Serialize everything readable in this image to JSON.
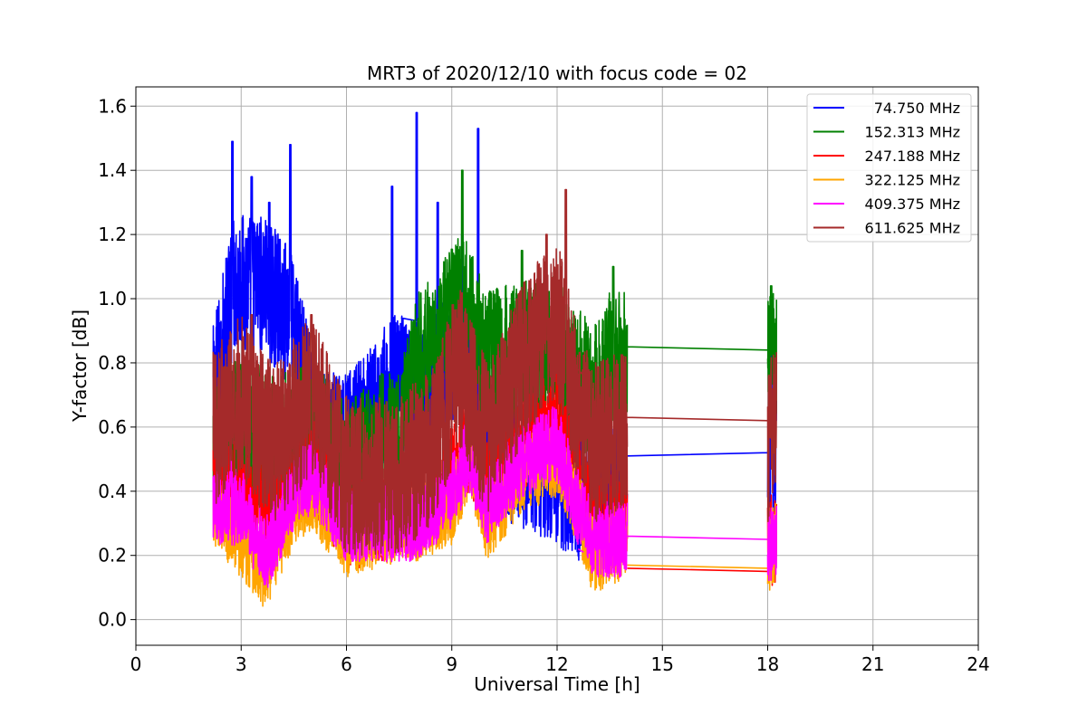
{
  "chart_data": {
    "type": "line",
    "title": "MRT3 of 2020/12/10 with focus code = 02",
    "xlabel": "Universal Time [h]",
    "ylabel": "Y-factor [dB]",
    "xlim": [
      0,
      24
    ],
    "ylim": [
      -0.08,
      1.66
    ],
    "xticks": [
      0,
      3,
      6,
      9,
      12,
      15,
      18,
      21,
      24
    ],
    "yticks": [
      0.0,
      0.2,
      0.4,
      0.6,
      0.8,
      1.0,
      1.2,
      1.4,
      1.6
    ],
    "ytick_labels": [
      "0.0",
      "0.2",
      "0.4",
      "0.6",
      "0.8",
      "1.0",
      "1.2",
      "1.4",
      "1.6"
    ],
    "grid": true,
    "legend_position": "top-right",
    "segments": [
      {
        "x0": 2.2,
        "x1": 7.55
      },
      {
        "x0": 7.55,
        "x1": 8.05
      },
      {
        "x0": 8.05,
        "x1": 12.6
      },
      {
        "x0": 12.6,
        "x1": 12.75
      },
      {
        "x0": 12.75,
        "x1": 14.0
      },
      {
        "x0": 18.0,
        "x1": 18.25
      }
    ],
    "series": [
      {
        "name": "74.750 MHz",
        "color": "#0000ff",
        "baseline": [
          [
            2.2,
            0.7
          ],
          [
            2.8,
            1.05
          ],
          [
            3.5,
            1.05
          ],
          [
            4.4,
            0.95
          ],
          [
            5.2,
            0.55
          ],
          [
            6.0,
            0.55
          ],
          [
            7.5,
            0.75
          ],
          [
            8.0,
            0.65
          ],
          [
            8.5,
            0.75
          ],
          [
            9.3,
            0.85
          ],
          [
            10.0,
            0.55
          ],
          [
            11.0,
            0.5
          ],
          [
            12.0,
            0.45
          ],
          [
            12.6,
            0.4
          ],
          [
            13.0,
            0.4
          ],
          [
            14.0,
            0.45
          ],
          [
            18.0,
            0.5
          ],
          [
            18.25,
            0.55
          ]
        ],
        "amplitude": 0.22,
        "peaks": [
          [
            2.75,
            1.49
          ],
          [
            3.3,
            1.38
          ],
          [
            3.8,
            1.3
          ],
          [
            4.4,
            1.48
          ],
          [
            7.3,
            1.35
          ],
          [
            8.0,
            1.58
          ],
          [
            8.6,
            1.3
          ],
          [
            9.3,
            1.2
          ],
          [
            9.75,
            1.53
          ],
          [
            18.1,
            0.84
          ]
        ],
        "min": 0.0,
        "gaps": [
          [
            7.55,
            8.05,
            0.94,
            0.93
          ],
          [
            12.6,
            12.75,
            0.38,
            0.37
          ],
          [
            14.0,
            18.0,
            0.51,
            0.52
          ]
        ]
      },
      {
        "name": "152.313 MHz",
        "color": "#008000",
        "baseline": [
          [
            2.2,
            0.55
          ],
          [
            3.0,
            0.6
          ],
          [
            4.0,
            0.55
          ],
          [
            5.0,
            0.6
          ],
          [
            6.0,
            0.45
          ],
          [
            7.0,
            0.55
          ],
          [
            7.5,
            0.55
          ],
          [
            8.0,
            0.8
          ],
          [
            8.5,
            0.85
          ],
          [
            9.3,
            1.0
          ],
          [
            10.0,
            0.8
          ],
          [
            11.0,
            0.85
          ],
          [
            12.0,
            0.85
          ],
          [
            12.6,
            0.75
          ],
          [
            13.0,
            0.7
          ],
          [
            13.5,
            0.8
          ],
          [
            14.0,
            0.8
          ],
          [
            18.0,
            0.8
          ],
          [
            18.25,
            0.85
          ]
        ],
        "amplitude": 0.22,
        "peaks": [
          [
            9.3,
            1.4
          ],
          [
            13.6,
            1.1
          ],
          [
            18.1,
            1.04
          ],
          [
            11.0,
            1.15
          ]
        ],
        "min": 0.01,
        "gaps": [
          [
            7.55,
            8.05,
            0.76,
            0.76
          ],
          [
            12.6,
            12.75,
            0.78,
            0.77
          ],
          [
            14.0,
            18.0,
            0.85,
            0.84
          ]
        ]
      },
      {
        "name": "247.188 MHz",
        "color": "#ff0000",
        "baseline": [
          [
            2.2,
            0.45
          ],
          [
            3.0,
            0.4
          ],
          [
            4.0,
            0.35
          ],
          [
            5.0,
            0.5
          ],
          [
            6.0,
            0.3
          ],
          [
            7.5,
            0.35
          ],
          [
            8.0,
            0.35
          ],
          [
            9.0,
            0.45
          ],
          [
            9.5,
            0.55
          ],
          [
            10.0,
            0.4
          ],
          [
            11.0,
            0.55
          ],
          [
            12.0,
            0.6
          ],
          [
            12.6,
            0.45
          ],
          [
            13.0,
            0.3
          ],
          [
            14.0,
            0.35
          ],
          [
            18.0,
            0.25
          ],
          [
            18.25,
            0.25
          ]
        ],
        "amplitude": 0.15,
        "peaks": [
          [
            12.0,
            0.8
          ],
          [
            11.6,
            0.75
          ]
        ],
        "min": 0.05,
        "gaps": [
          [
            7.55,
            8.05,
            0.36,
            0.35
          ],
          [
            12.6,
            12.75,
            0.4,
            0.39
          ],
          [
            14.0,
            18.0,
            0.16,
            0.15
          ]
        ]
      },
      {
        "name": "322.125 MHz",
        "color": "#ffa500",
        "baseline": [
          [
            2.2,
            0.35
          ],
          [
            3.0,
            0.25
          ],
          [
            3.7,
            0.15
          ],
          [
            4.5,
            0.35
          ],
          [
            5.0,
            0.4
          ],
          [
            6.0,
            0.25
          ],
          [
            7.5,
            0.3
          ],
          [
            8.0,
            0.3
          ],
          [
            9.0,
            0.35
          ],
          [
            9.5,
            0.5
          ],
          [
            10.0,
            0.3
          ],
          [
            11.0,
            0.45
          ],
          [
            12.0,
            0.5
          ],
          [
            12.6,
            0.35
          ],
          [
            13.0,
            0.2
          ],
          [
            14.0,
            0.25
          ],
          [
            18.0,
            0.2
          ],
          [
            18.25,
            0.25
          ]
        ],
        "amplitude": 0.12,
        "peaks": [],
        "min": 0.0,
        "gaps": [
          [
            7.55,
            8.05,
            0.34,
            0.33
          ],
          [
            12.6,
            12.75,
            0.37,
            0.36
          ],
          [
            14.0,
            18.0,
            0.17,
            0.16
          ]
        ]
      },
      {
        "name": "409.375 MHz",
        "color": "#ff00ff",
        "baseline": [
          [
            2.2,
            0.35
          ],
          [
            3.0,
            0.35
          ],
          [
            3.7,
            0.2
          ],
          [
            4.5,
            0.4
          ],
          [
            5.0,
            0.45
          ],
          [
            6.0,
            0.3
          ],
          [
            7.5,
            0.3
          ],
          [
            8.0,
            0.3
          ],
          [
            9.0,
            0.4
          ],
          [
            9.5,
            0.52
          ],
          [
            10.0,
            0.35
          ],
          [
            11.0,
            0.5
          ],
          [
            12.0,
            0.55
          ],
          [
            12.6,
            0.35
          ],
          [
            13.0,
            0.25
          ],
          [
            14.0,
            0.25
          ],
          [
            18.0,
            0.22
          ],
          [
            18.25,
            0.25
          ]
        ],
        "amplitude": 0.12,
        "peaks": [
          [
            2.7,
            0.58
          ]
        ],
        "min": 0.05,
        "gaps": [
          [
            7.55,
            8.05,
            0.38,
            0.37
          ],
          [
            12.6,
            12.75,
            0.22,
            0.21
          ],
          [
            14.0,
            18.0,
            0.26,
            0.25
          ]
        ]
      },
      {
        "name": "611.625 MHz",
        "color": "#a52a2a",
        "baseline": [
          [
            2.2,
            0.6
          ],
          [
            3.0,
            0.7
          ],
          [
            3.5,
            0.6
          ],
          [
            4.0,
            0.55
          ],
          [
            5.0,
            0.7
          ],
          [
            6.0,
            0.45
          ],
          [
            7.5,
            0.45
          ],
          [
            8.0,
            0.5
          ],
          [
            8.5,
            0.55
          ],
          [
            9.2,
            0.8
          ],
          [
            10.0,
            0.55
          ],
          [
            11.0,
            0.8
          ],
          [
            12.0,
            0.95
          ],
          [
            12.5,
            0.7
          ],
          [
            13.0,
            0.55
          ],
          [
            14.0,
            0.6
          ],
          [
            18.0,
            0.55
          ],
          [
            18.25,
            0.6
          ]
        ],
        "amplitude": 0.25,
        "peaks": [
          [
            12.25,
            1.34
          ],
          [
            5.0,
            0.95
          ],
          [
            11.7,
            1.2
          ],
          [
            3.3,
            0.95
          ]
        ],
        "min": 0.07,
        "gaps": [
          [
            7.55,
            8.05,
            0.42,
            0.41
          ],
          [
            12.6,
            12.75,
            0.78,
            0.76
          ],
          [
            14.0,
            18.0,
            0.63,
            0.62
          ]
        ]
      }
    ]
  }
}
